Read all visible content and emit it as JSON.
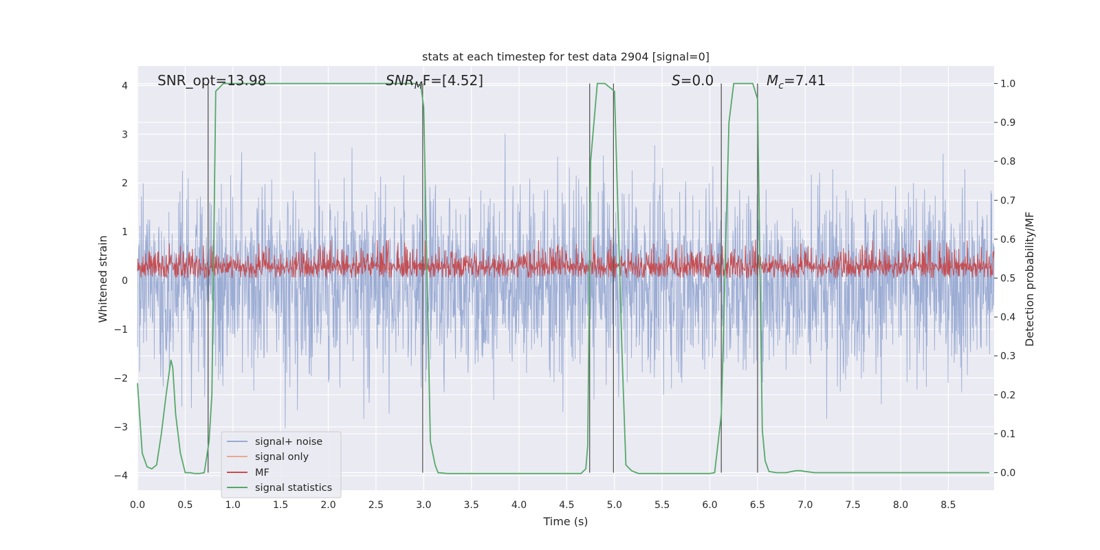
{
  "chart_data": {
    "type": "line",
    "title": "stats at each timestep for test data 2904 [signal=0]",
    "xlabel": "Time (s)",
    "ylabel_left": "Whitened strain",
    "ylabel_right": "Detection probability/MF",
    "xlim": [
      0,
      8.98
    ],
    "ylim_left": [
      -4.3,
      4.4
    ],
    "ylim_right": [
      -0.045,
      1.045
    ],
    "grid": true,
    "legend_placement": "lower-left",
    "x_ticks": [
      "0.0",
      "0.5",
      "1.0",
      "1.5",
      "2.0",
      "2.5",
      "3.0",
      "3.5",
      "4.0",
      "4.5",
      "5.0",
      "5.5",
      "6.0",
      "6.5",
      "7.0",
      "7.5",
      "8.0",
      "8.5"
    ],
    "y_ticks_left": [
      "4",
      "3",
      "2",
      "1",
      "0",
      "−1",
      "−2",
      "−3",
      "−4"
    ],
    "y_ticks_right": [
      "1.0",
      "0.9",
      "0.8",
      "0.7",
      "0.6",
      "0.5",
      "0.4",
      "0.3",
      "0.2",
      "0.1",
      "0.0"
    ],
    "annotations": {
      "snr_opt": "SNR_opt=13.98",
      "snr_mf_main": "SNR",
      "snr_mf_sub": "M",
      "snr_mf_rest": "F=[4.52]",
      "s_main": "S",
      "s_rest": "=0.0",
      "mc_main": "M",
      "mc_sub": "c",
      "mc_rest": "=7.41"
    },
    "legend": {
      "signal_noise": "signal+ noise",
      "signal_only": "signal only",
      "mf": "MF",
      "signal_statistics": "signal statistics"
    },
    "colors": {
      "background": "#eaeaf2",
      "grid": "#ffffff",
      "signal_noise": "#97a9d2",
      "signal_only": "#e8a98c",
      "mf": "#c44e52",
      "signal_statistics": "#55a868",
      "vlines": "#555555"
    },
    "series": [
      {
        "name": "signal statistics",
        "axis": "right",
        "x": [
          0.0,
          0.05,
          0.1,
          0.15,
          0.2,
          0.25,
          0.3,
          0.35,
          0.37,
          0.4,
          0.45,
          0.48,
          0.5,
          0.55,
          0.6,
          0.65,
          0.7,
          0.75,
          0.78,
          0.82,
          0.9,
          1.0,
          2.0,
          2.9,
          2.97,
          3.0,
          3.07,
          3.12,
          3.15,
          3.25,
          3.5,
          4.0,
          4.5,
          4.65,
          4.7,
          4.72,
          4.75,
          4.82,
          4.9,
          4.95,
          5.0,
          5.08,
          5.12,
          5.18,
          5.25,
          5.5,
          6.0,
          6.05,
          6.12,
          6.2,
          6.25,
          6.3,
          6.45,
          6.5,
          6.55,
          6.58,
          6.62,
          6.7,
          6.8,
          6.9,
          6.95,
          7.0,
          7.1,
          7.5,
          8.0,
          8.5,
          8.93
        ],
        "y": [
          0.23,
          0.05,
          0.015,
          0.01,
          0.02,
          0.1,
          0.2,
          0.29,
          0.27,
          0.15,
          0.05,
          0.02,
          0.0,
          0.0,
          -0.002,
          -0.002,
          0.0,
          0.08,
          0.2,
          0.98,
          1.0,
          1.0,
          1.0,
          1.0,
          0.995,
          0.94,
          0.08,
          0.02,
          0.0,
          -0.002,
          -0.002,
          -0.002,
          -0.002,
          -0.002,
          0.01,
          0.07,
          0.8,
          1.0,
          1.0,
          0.99,
          0.98,
          0.3,
          0.02,
          0.005,
          -0.002,
          -0.002,
          -0.002,
          0.0,
          0.15,
          0.9,
          1.0,
          1.0,
          1.0,
          0.96,
          0.11,
          0.03,
          0.003,
          0.0,
          0.0,
          0.005,
          0.005,
          0.003,
          0.0,
          0.0,
          0.0,
          0.0,
          0.0
        ]
      }
    ],
    "vertical_lines": [
      0.74,
      2.99,
      4.74,
      4.99,
      6.12,
      6.5
    ]
  }
}
